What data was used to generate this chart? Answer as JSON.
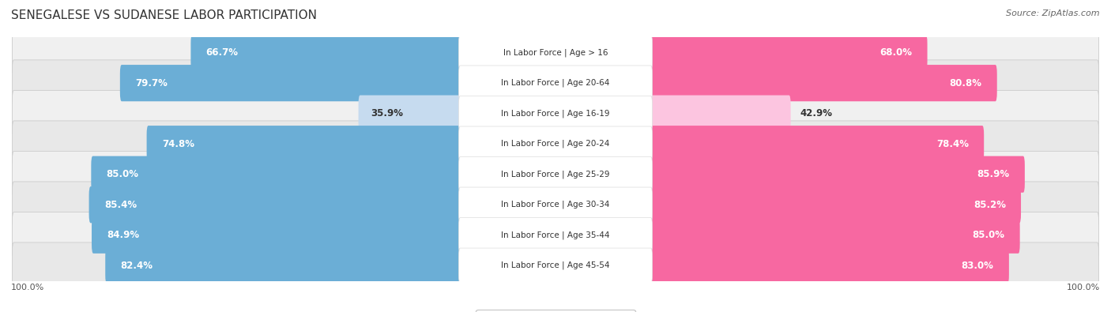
{
  "title": "SENEGALESE VS SUDANESE LABOR PARTICIPATION",
  "source": "Source: ZipAtlas.com",
  "categories": [
    "In Labor Force | Age > 16",
    "In Labor Force | Age 20-64",
    "In Labor Force | Age 16-19",
    "In Labor Force | Age 20-24",
    "In Labor Force | Age 25-29",
    "In Labor Force | Age 30-34",
    "In Labor Force | Age 35-44",
    "In Labor Force | Age 45-54"
  ],
  "senegalese_values": [
    66.7,
    79.7,
    35.9,
    74.8,
    85.0,
    85.4,
    84.9,
    82.4
  ],
  "sudanese_values": [
    68.0,
    80.8,
    42.9,
    78.4,
    85.9,
    85.2,
    85.0,
    83.0
  ],
  "senegalese_color_full": "#6baed6",
  "senegalese_color_light": "#c6dbef",
  "sudanese_color_full": "#f768a1",
  "sudanese_color_light": "#fcc5e0",
  "row_bg_color_odd": "#f0f0f0",
  "row_bg_color_even": "#e8e8e8",
  "row_border_color": "#cccccc",
  "label_bg_color": "#ffffff",
  "label_border_color": "#dddddd",
  "title_fontsize": 11,
  "source_fontsize": 8,
  "bar_label_fontsize": 8.5,
  "category_fontsize": 7.5,
  "legend_fontsize": 9,
  "axis_label_fontsize": 8,
  "max_value": 100.0,
  "x_axis_label": "100.0%",
  "background_color": "#ffffff",
  "text_color_dark": "#333333",
  "text_color_light": "#ffffff",
  "text_color_outside": "#555555"
}
